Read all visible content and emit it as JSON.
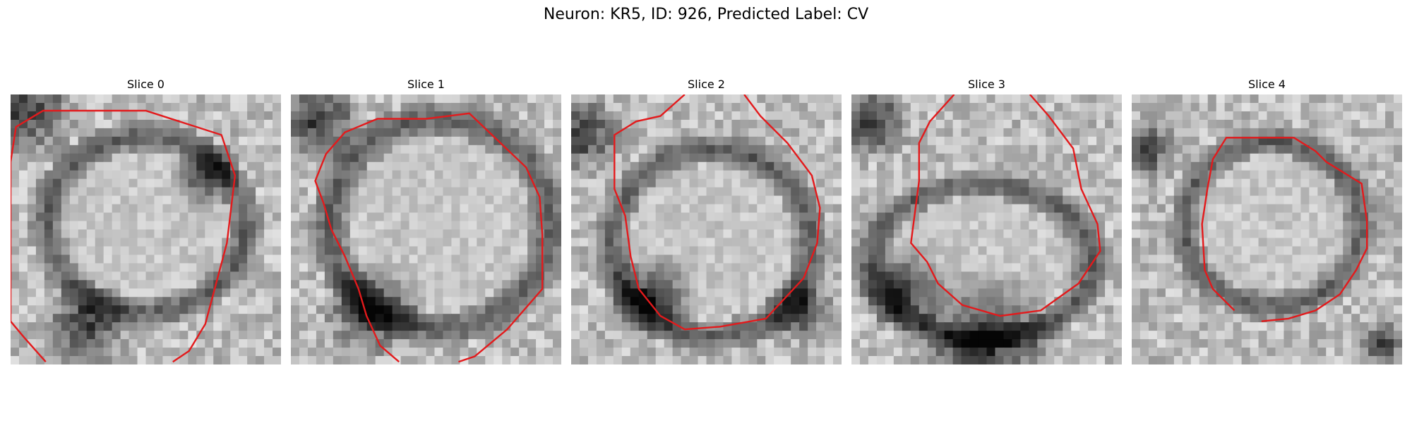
{
  "figure": {
    "title": "Neuron: KR5, ID: 926, Predicted Label: CV",
    "contour_color": "#e31a1c",
    "colormap": "gray"
  },
  "panels": [
    {
      "title": "Slice 0"
    },
    {
      "title": "Slice 1"
    },
    {
      "title": "Slice 2"
    },
    {
      "title": "Slice 3"
    },
    {
      "title": "Slice 4"
    }
  ]
}
